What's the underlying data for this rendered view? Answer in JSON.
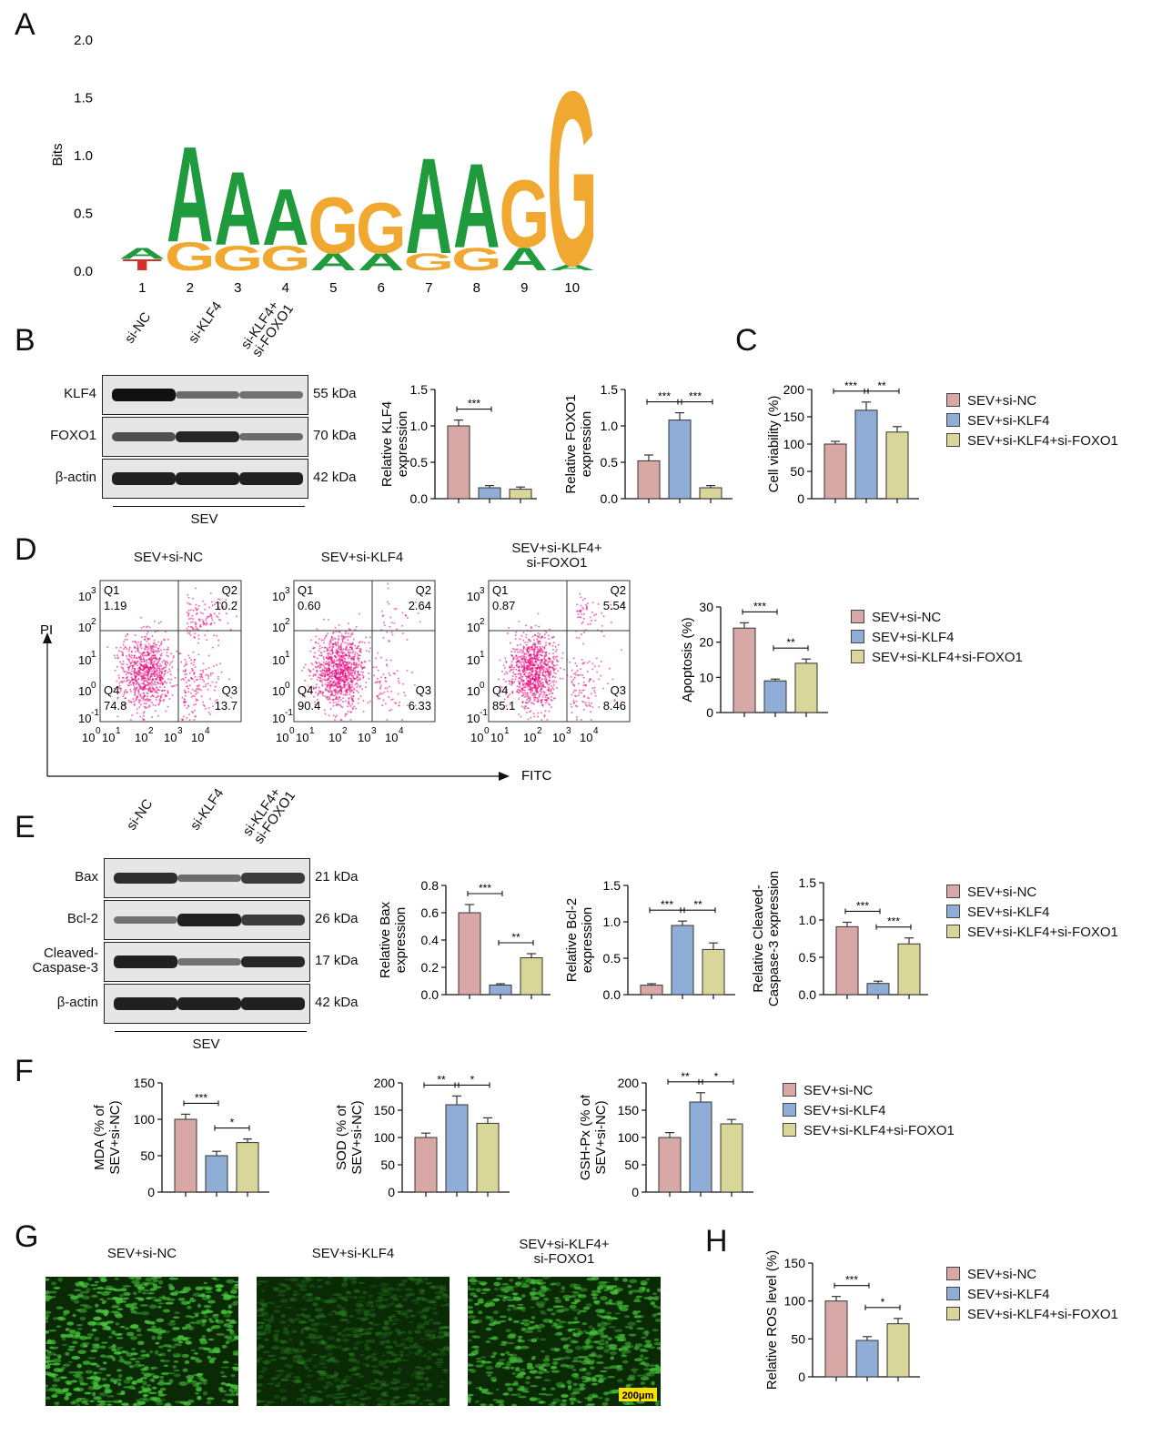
{
  "panel_letters": [
    "A",
    "B",
    "C",
    "D",
    "E",
    "F",
    "G",
    "H"
  ],
  "legend": [
    "SEV+si-NC",
    "SEV+si-KLF4",
    "SEV+si-KLF4+si-FOXO1"
  ],
  "colors": {
    "nc": "#d7a8a6",
    "klf4": "#8fadd6",
    "foxo1": "#d9d69a",
    "dot": "#e8007a",
    "micro": "#1a7a14"
  },
  "blot_B": {
    "lanes": [
      "si-NC",
      "si-KLF4",
      "si-KLF4+ si-FOXO1"
    ],
    "rows": [
      {
        "name": "KLF4",
        "kda": "55 kDa",
        "levels": [
          1.0,
          0.35,
          0.3
        ]
      },
      {
        "name": "FOXO1",
        "kda": "70 kDa",
        "levels": [
          0.55,
          0.85,
          0.35
        ]
      },
      {
        "name": "β-actin",
        "kda": "42 kDa",
        "levels": [
          0.9,
          0.9,
          0.9
        ]
      }
    ],
    "group": "SEV"
  },
  "blot_E": {
    "lanes": [
      "si-NC",
      "si-KLF4",
      "si-KLF4+ si-FOXO1"
    ],
    "rows": [
      {
        "name": "Bax",
        "kda": "21 kDa",
        "levels": [
          0.8,
          0.35,
          0.7
        ]
      },
      {
        "name": "Bcl-2",
        "kda": "26 kDa",
        "levels": [
          0.3,
          0.9,
          0.7
        ]
      },
      {
        "name": "Cleaved- Caspase-3",
        "kda": "17 kDa",
        "levels": [
          0.9,
          0.3,
          0.85
        ]
      },
      {
        "name": "β-actin",
        "kda": "42 kDa",
        "levels": [
          0.9,
          0.9,
          0.9
        ]
      }
    ],
    "group": "SEV"
  },
  "flow": {
    "titles": [
      "SEV+si-NC",
      "SEV+si-KLF4",
      "SEV+si-KLF4+ si-FOXO1"
    ],
    "y_axis": "PI",
    "x_axis": "FITC",
    "quadrants": [
      {
        "q1": "1.19",
        "q2": "10.2",
        "q3": "13.7",
        "q4": "74.8"
      },
      {
        "q1": "0.60",
        "q2": "2.64",
        "q3": "6.33",
        "q4": "90.4"
      },
      {
        "q1": "0.87",
        "q2": "5.54",
        "q3": "8.46",
        "q4": "85.1"
      }
    ]
  },
  "micro_titles": [
    "SEV+si-NC",
    "SEV+si-KLF4",
    "SEV+si-KLF4+ si-FOXO1"
  ],
  "scale_bar": "200μm",
  "chart_data": [
    {
      "type": "logo",
      "panel": "A",
      "ylabel": "Bits",
      "ylim": [
        0,
        2.0
      ],
      "yticks": [
        "0.0",
        "0.5",
        "1.0",
        "1.5",
        "2.0"
      ],
      "positions": [
        "1",
        "2",
        "3",
        "4",
        "5",
        "6",
        "7",
        "8",
        "9",
        "10"
      ],
      "letters": [
        [
          {
            "base": "T",
            "bits": 0.1
          },
          {
            "base": "A",
            "bits": 0.1
          }
        ],
        [
          {
            "base": "A",
            "bits": 0.85
          },
          {
            "base": "G",
            "bits": 0.25
          }
        ],
        [
          {
            "base": "A",
            "bits": 0.65
          },
          {
            "base": "G",
            "bits": 0.22
          }
        ],
        [
          {
            "base": "A",
            "bits": 0.5
          },
          {
            "base": "G",
            "bits": 0.22
          }
        ],
        [
          {
            "base": "G",
            "bits": 0.5
          },
          {
            "base": "A",
            "bits": 0.15
          }
        ],
        [
          {
            "base": "G",
            "bits": 0.45
          },
          {
            "base": "A",
            "bits": 0.15
          }
        ],
        [
          {
            "base": "A",
            "bits": 0.85
          },
          {
            "base": "G",
            "bits": 0.15
          }
        ],
        [
          {
            "base": "A",
            "bits": 0.75
          },
          {
            "base": "G",
            "bits": 0.2
          }
        ],
        [
          {
            "base": "G",
            "bits": 0.6
          },
          {
            "base": "A",
            "bits": 0.2
          }
        ],
        [
          {
            "base": "G",
            "bits": 1.55
          },
          {
            "base": "A",
            "bits": 0.05
          }
        ]
      ]
    },
    {
      "type": "bar",
      "panel": "B",
      "ylabel": "Relative KLF4 expression",
      "ylim": [
        0,
        1.5
      ],
      "yticks": [
        "0.0",
        "0.5",
        "1.0",
        "1.5"
      ],
      "values": [
        1.0,
        0.15,
        0.13
      ],
      "errors": [
        0.08,
        0.03,
        0.03
      ],
      "sig": [
        {
          "a": 0,
          "b": 1,
          "label": "***"
        }
      ]
    },
    {
      "type": "bar",
      "panel": "B",
      "ylabel": "Relative FOXO1 expression",
      "ylim": [
        0,
        1.5
      ],
      "yticks": [
        "0.0",
        "0.5",
        "1.0",
        "1.5"
      ],
      "values": [
        0.52,
        1.08,
        0.15
      ],
      "errors": [
        0.08,
        0.1,
        0.03
      ],
      "sig": [
        {
          "a": 0,
          "b": 1,
          "label": "***"
        },
        {
          "a": 1,
          "b": 2,
          "label": "***"
        }
      ]
    },
    {
      "type": "bar",
      "panel": "C",
      "ylabel": "Cell viability (%)",
      "ylim": [
        0,
        200
      ],
      "yticks": [
        "0",
        "50",
        "100",
        "150",
        "200"
      ],
      "values": [
        100,
        162,
        122
      ],
      "errors": [
        5,
        15,
        10
      ],
      "sig": [
        {
          "a": 0,
          "b": 1,
          "label": "***"
        },
        {
          "a": 1,
          "b": 2,
          "label": "**"
        }
      ]
    },
    {
      "type": "bar",
      "panel": "D",
      "ylabel": "Apoptosis (%)",
      "ylim": [
        0,
        30
      ],
      "yticks": [
        "0",
        "10",
        "20",
        "30"
      ],
      "values": [
        24,
        9,
        14
      ],
      "errors": [
        1.5,
        0.5,
        1.2
      ],
      "sig": [
        {
          "a": 0,
          "b": 1,
          "label": "***"
        },
        {
          "a": 1,
          "b": 2,
          "label": "**"
        }
      ]
    },
    {
      "type": "bar",
      "panel": "E",
      "ylabel": "Relative Bax expression",
      "ylim": [
        0,
        0.8
      ],
      "yticks": [
        "0.0",
        "0.2",
        "0.4",
        "0.6",
        "0.8"
      ],
      "values": [
        0.6,
        0.07,
        0.27
      ],
      "errors": [
        0.06,
        0.01,
        0.03
      ],
      "sig": [
        {
          "a": 0,
          "b": 1,
          "label": "***"
        },
        {
          "a": 1,
          "b": 2,
          "label": "**"
        }
      ]
    },
    {
      "type": "bar",
      "panel": "E",
      "ylabel": "Relative Bcl-2 expression",
      "ylim": [
        0,
        1.5
      ],
      "yticks": [
        "0.0",
        "0.5",
        "1.0",
        "1.5"
      ],
      "values": [
        0.13,
        0.95,
        0.62
      ],
      "errors": [
        0.02,
        0.06,
        0.09
      ],
      "sig": [
        {
          "a": 0,
          "b": 1,
          "label": "***"
        },
        {
          "a": 1,
          "b": 2,
          "label": "**"
        }
      ]
    },
    {
      "type": "bar",
      "panel": "E",
      "ylabel": "Relative Cleaved-Caspase-3 expression",
      "ylim": [
        0,
        1.5
      ],
      "yticks": [
        "0.0",
        "0.5",
        "1.0",
        "1.5"
      ],
      "values": [
        0.91,
        0.15,
        0.68
      ],
      "errors": [
        0.06,
        0.03,
        0.08
      ],
      "sig": [
        {
          "a": 0,
          "b": 1,
          "label": "***"
        },
        {
          "a": 1,
          "b": 2,
          "label": "***"
        }
      ]
    },
    {
      "type": "bar",
      "panel": "F",
      "ylabel": "MDA (% of SEV+si-NC)",
      "ylim": [
        0,
        150
      ],
      "yticks": [
        "0",
        "50",
        "100",
        "150"
      ],
      "values": [
        100,
        50,
        68
      ],
      "errors": [
        7,
        6,
        5
      ],
      "sig": [
        {
          "a": 0,
          "b": 1,
          "label": "***"
        },
        {
          "a": 1,
          "b": 2,
          "label": "*"
        }
      ]
    },
    {
      "type": "bar",
      "panel": "F",
      "ylabel": "SOD (% of SEV+si-NC)",
      "ylim": [
        0,
        200
      ],
      "yticks": [
        "0",
        "50",
        "100",
        "150",
        "200"
      ],
      "values": [
        100,
        160,
        126
      ],
      "errors": [
        8,
        16,
        10
      ],
      "sig": [
        {
          "a": 0,
          "b": 1,
          "label": "**"
        },
        {
          "a": 1,
          "b": 2,
          "label": "*"
        }
      ]
    },
    {
      "type": "bar",
      "panel": "F",
      "ylabel": "GSH-Px (% of SEV+si-NC)",
      "ylim": [
        0,
        200
      ],
      "yticks": [
        "0",
        "50",
        "100",
        "150",
        "200"
      ],
      "values": [
        100,
        165,
        125
      ],
      "errors": [
        9,
        17,
        8
      ],
      "sig": [
        {
          "a": 0,
          "b": 1,
          "label": "**"
        },
        {
          "a": 1,
          "b": 2,
          "label": "*"
        }
      ]
    },
    {
      "type": "bar",
      "panel": "H",
      "ylabel": "Relative ROS level (%)",
      "ylim": [
        0,
        150
      ],
      "yticks": [
        "0",
        "50",
        "100",
        "150"
      ],
      "values": [
        100,
        48,
        70
      ],
      "errors": [
        6,
        5,
        7
      ],
      "sig": [
        {
          "a": 0,
          "b": 1,
          "label": "***"
        },
        {
          "a": 1,
          "b": 2,
          "label": "*"
        }
      ]
    }
  ]
}
